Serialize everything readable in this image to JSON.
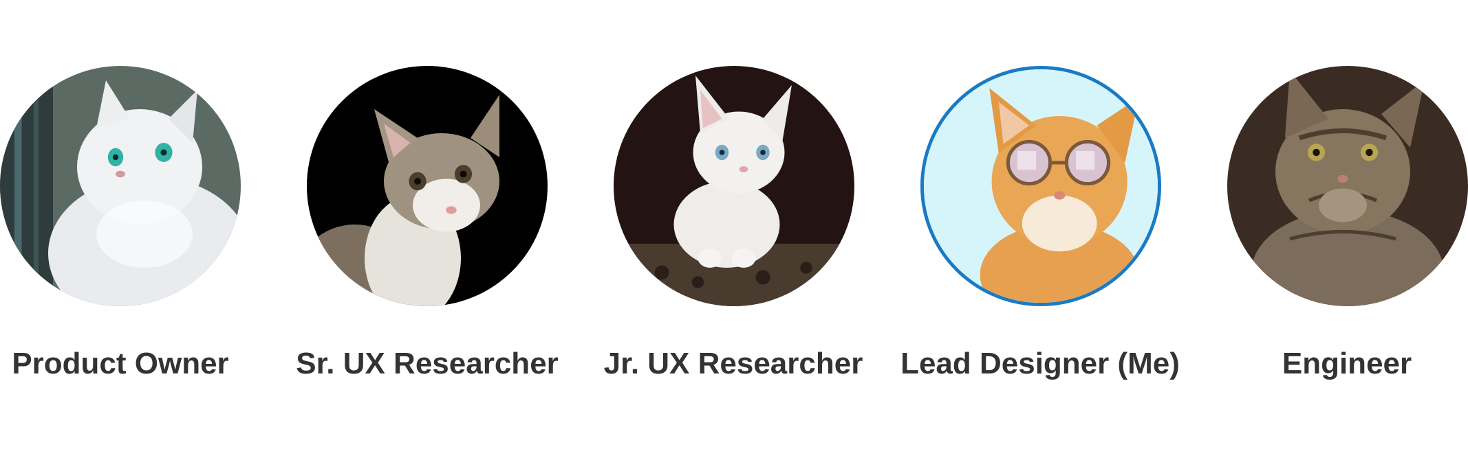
{
  "team": {
    "members": [
      {
        "role": "Product Owner",
        "avatar": "white-persian-cat-photo",
        "highlighted": false
      },
      {
        "role": "Sr. UX Researcher",
        "avatar": "tabby-white-cat-photo",
        "highlighted": false
      },
      {
        "role": "Jr. UX Researcher",
        "avatar": "white-kitten-photo",
        "highlighted": false
      },
      {
        "role": "Lead Designer (Me)",
        "avatar": "orange-cat-sunglasses-photo",
        "highlighted": true
      },
      {
        "role": "Engineer",
        "avatar": "tabby-cat-photo",
        "highlighted": false
      }
    ]
  },
  "colors": {
    "highlight_ring": "#1a7bc4",
    "label_text": "#333333",
    "background": "#ffffff"
  }
}
